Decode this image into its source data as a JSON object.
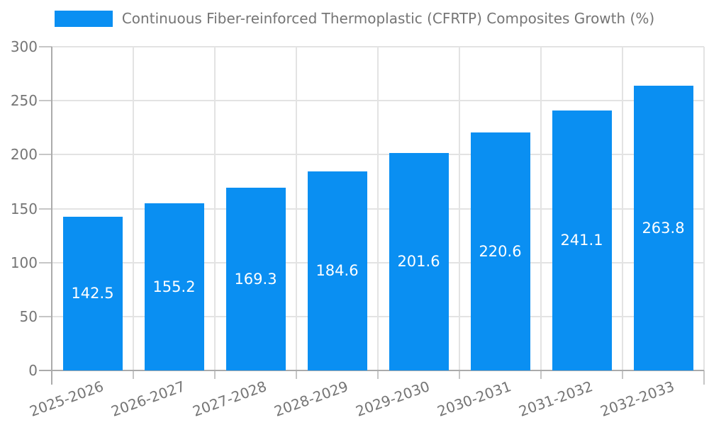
{
  "chart_data": {
    "type": "bar",
    "title": "Continuous Fiber-reinforced Thermoplastic (CFRTP) Composites Growth (%)",
    "legend_position": "top",
    "categories": [
      "2025-2026",
      "2026-2027",
      "2027-2028",
      "2028-2029",
      "2029-2030",
      "2030-2031",
      "2031-2032",
      "2032-2033"
    ],
    "series": [
      {
        "name": "Continuous Fiber-reinforced Thermoplastic (CFRTP) Composites Growth (%)",
        "values": [
          142.5,
          155.2,
          169.3,
          184.6,
          201.6,
          220.6,
          241.1,
          263.8
        ],
        "color": "#0a8ff2"
      }
    ],
    "value_labels": {
      "position": "center-of-bar",
      "color": "#ffffff",
      "decimals": 1
    },
    "xlabel": "",
    "ylabel": "",
    "ylim": [
      0,
      300
    ],
    "yticks": [
      0,
      50,
      100,
      150,
      200,
      250,
      300
    ],
    "grid": true,
    "x_tick_rotation_deg": -20,
    "colors": {
      "background": "#ffffff",
      "bar": "#0a8ff2",
      "grid_line": "#e3e3e3",
      "axis_line": "#ababab",
      "tick_mark": "#c6c6c6",
      "tick_label": "#757575",
      "legend_label": "#757575",
      "value_label": "#ffffff"
    }
  }
}
